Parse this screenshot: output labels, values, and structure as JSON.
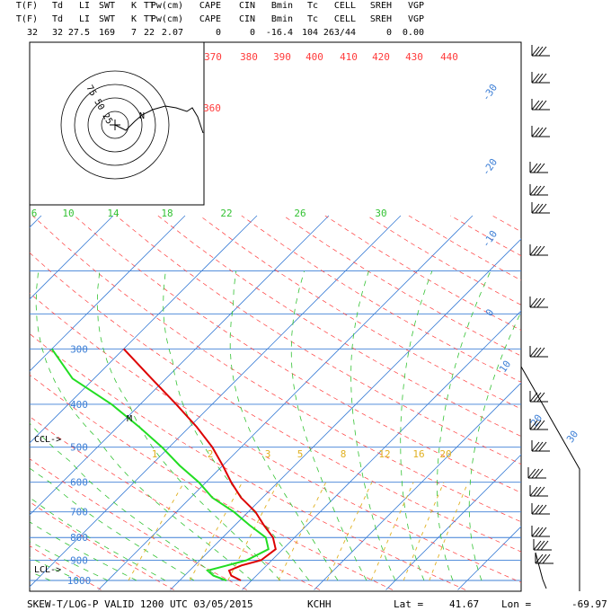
{
  "header": {
    "row1": [
      "T(F)",
      "Td",
      "LI",
      "SWT",
      "K",
      "TT",
      "Pw(cm)",
      "CAPE",
      "CIN",
      "Bmin",
      "Tc",
      "CELL",
      "SREH",
      "VGP"
    ],
    "row2": [
      "T(F)",
      "Td",
      "LI",
      "SWT",
      "K",
      "TT",
      "Pw(cm)",
      "CAPE",
      "CIN",
      "Bmin",
      "Tc",
      "CELL",
      "SREH",
      "VGP"
    ],
    "values": [
      "32",
      "32",
      "27.5",
      "169",
      "7",
      "22",
      "2.07",
      "0",
      "0",
      "-16.4",
      "104",
      "263/44",
      "0",
      "0.00"
    ]
  },
  "footer": {
    "title": "SKEW-T/LOG-P VALID 1200 UTC 03/05/2015",
    "station": "KCHH",
    "lat_label": "Lat =",
    "lat": "41.67",
    "lon_label": "Lon =",
    "lon": "-69.97"
  },
  "colors": {
    "isobar": "#3d7fd6",
    "isotherm": "#3d7fd6",
    "dry_adiabat": "#ff3b3b",
    "moist_adiabat": "#33c233",
    "mixing_ratio": "#e0b020",
    "temperature": "#dd0000",
    "dewpoint": "#22dd22",
    "theta_label": "#ff3b3b",
    "wind": "#000000"
  },
  "chart_data": {
    "type": "skew-t",
    "pressure_labels": [
      "300",
      "400",
      "500",
      "600",
      "700",
      "800",
      "900",
      "1000"
    ],
    "pressure_levels_hpa": [
      300,
      400,
      500,
      600,
      700,
      800,
      900,
      1000
    ],
    "isotherm_labels": [
      "-30",
      "-20",
      "-10",
      "0",
      "10",
      "20",
      "30"
    ],
    "isotherm_values_c": [
      -30,
      -20,
      -10,
      0,
      10,
      20,
      30
    ],
    "theta_labels": [
      "370",
      "380",
      "390",
      "400",
      "410",
      "420",
      "430",
      "440",
      "360"
    ],
    "wetbulb_labels": [
      "6",
      "10",
      "14",
      "18",
      "22",
      "26",
      "30"
    ],
    "mixing_ratio_labels": [
      "1",
      "2",
      "3",
      "5",
      "8",
      "12",
      "16",
      "20"
    ],
    "annotations": {
      "ccl": "CCL->",
      "lcl": "LCL->",
      "m_marker": "M",
      "hodograph_rings": "75 50 25"
    },
    "temperature_profile": [
      {
        "p": 1000,
        "t": -1.5
      },
      {
        "p": 975,
        "t": -3.5
      },
      {
        "p": 950,
        "t": -4.5
      },
      {
        "p": 925,
        "t": -3.5
      },
      {
        "p": 900,
        "t": -1.5
      },
      {
        "p": 850,
        "t": -1.0
      },
      {
        "p": 800,
        "t": -3.0
      },
      {
        "p": 750,
        "t": -6.0
      },
      {
        "p": 700,
        "t": -9.0
      },
      {
        "p": 650,
        "t": -13.0
      },
      {
        "p": 600,
        "t": -16.5
      },
      {
        "p": 550,
        "t": -20.0
      },
      {
        "p": 500,
        "t": -24.0
      },
      {
        "p": 450,
        "t": -29.0
      },
      {
        "p": 400,
        "t": -35.0
      },
      {
        "p": 350,
        "t": -42.0
      },
      {
        "p": 300,
        "t": -50.0
      }
    ],
    "dewpoint_profile": [
      {
        "p": 1000,
        "t": -3.5
      },
      {
        "p": 975,
        "t": -6.0
      },
      {
        "p": 950,
        "t": -7.5
      },
      {
        "p": 925,
        "t": -5.5
      },
      {
        "p": 900,
        "t": -3.5
      },
      {
        "p": 850,
        "t": -2.0
      },
      {
        "p": 800,
        "t": -4.0
      },
      {
        "p": 750,
        "t": -8.0
      },
      {
        "p": 700,
        "t": -12.0
      },
      {
        "p": 650,
        "t": -17.0
      },
      {
        "p": 600,
        "t": -21.0
      },
      {
        "p": 550,
        "t": -26.0
      },
      {
        "p": 500,
        "t": -31.0
      },
      {
        "p": 450,
        "t": -37.0
      },
      {
        "p": 400,
        "t": -44.0
      },
      {
        "p": 350,
        "t": -53.0
      },
      {
        "p": 300,
        "t": -60.0
      }
    ],
    "grid": true
  }
}
